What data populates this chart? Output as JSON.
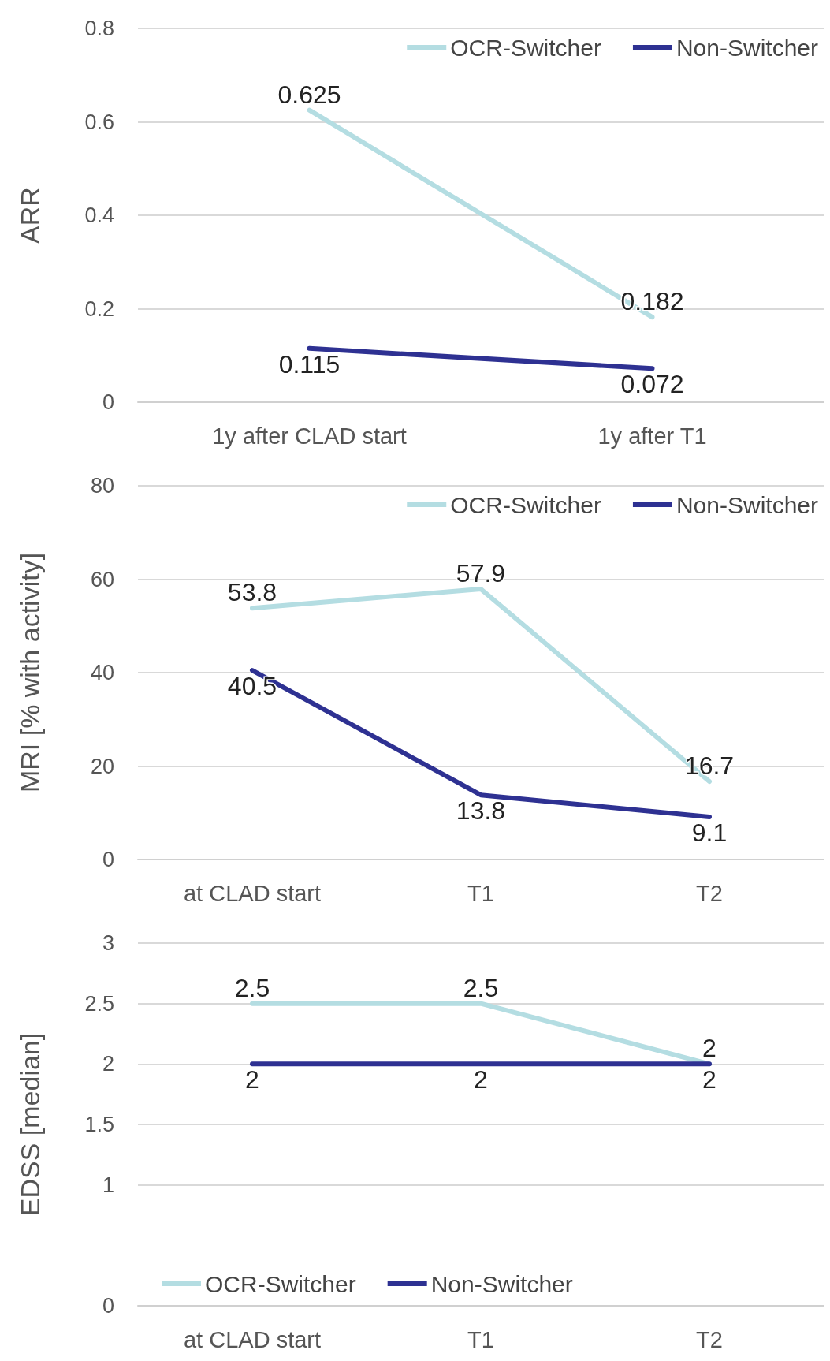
{
  "chart_data": [
    {
      "type": "line",
      "ylabel": "ARR",
      "categories": [
        "1y after CLAD start",
        "1y after T1"
      ],
      "series": [
        {
          "name": "OCR-Switcher",
          "color": "#b4dde2",
          "values": [
            0.625,
            0.182
          ]
        },
        {
          "name": "Non-Switcher",
          "color": "#2e3192",
          "values": [
            0.115,
            0.072
          ]
        }
      ],
      "ylim": [
        0,
        0.8
      ],
      "yticks": [
        0,
        0.2,
        0.4,
        0.6,
        0.8
      ],
      "grid": "y",
      "legend": "top right",
      "marker": "none",
      "line_style": "solid",
      "data_labels": true
    },
    {
      "type": "line",
      "ylabel": "MRI [% with activity]",
      "categories": [
        "at CLAD start",
        "T1",
        "T2"
      ],
      "series": [
        {
          "name": "OCR-Switcher",
          "color": "#b4dde2",
          "values": [
            53.8,
            57.9,
            16.7
          ]
        },
        {
          "name": "Non-Switcher",
          "color": "#2e3192",
          "values": [
            40.5,
            13.8,
            9.1
          ]
        }
      ],
      "ylim": [
        0,
        80
      ],
      "yticks": [
        0,
        20,
        40,
        60,
        80
      ],
      "grid": "y",
      "legend": "top right",
      "marker": "none",
      "line_style": "solid",
      "data_labels": true
    },
    {
      "type": "line",
      "ylabel": "EDSS [median]",
      "categories": [
        "at CLAD start",
        "T1",
        "T2"
      ],
      "series": [
        {
          "name": "OCR-Switcher",
          "color": "#b4dde2",
          "values": [
            2.5,
            2.5,
            2
          ]
        },
        {
          "name": "Non-Switcher",
          "color": "#2e3192",
          "values": [
            2,
            2,
            2
          ]
        }
      ],
      "ylim": [
        0,
        3
      ],
      "yticks": [
        0,
        1,
        1.5,
        2,
        2.5,
        3
      ],
      "grid": "y",
      "legend": "bottom",
      "marker": "none",
      "line_style": "solid",
      "data_labels": true
    }
  ]
}
